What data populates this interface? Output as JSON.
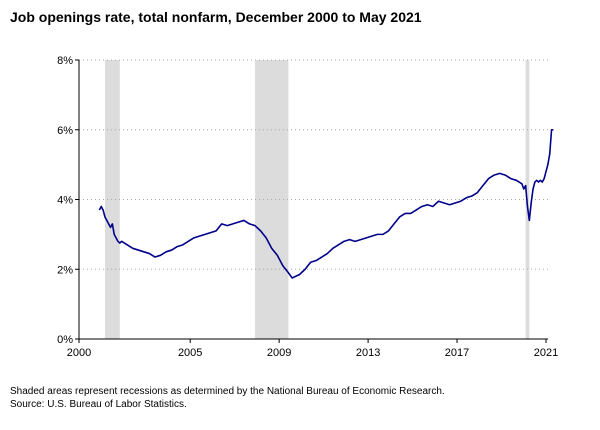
{
  "title": "Job openings rate, total nonfarm, December 2000 to May 2021",
  "footnotes": {
    "recessions": "Shaded areas represent recessions as determined by the National Bureau of Economic Research.",
    "source": "Source: U.S. Bureau of Labor Statistics."
  },
  "chart_data": {
    "type": "line",
    "title": "Job openings rate, total nonfarm, December 2000 to May 2021",
    "xlabel": "",
    "ylabel": "",
    "x_ticks": [
      "2000",
      "2005",
      "2009",
      "2013",
      "2017",
      "2021"
    ],
    "y_ticks": [
      "0%",
      "2%",
      "4%",
      "6%",
      "8%"
    ],
    "xlim": [
      "2000-12",
      "2021-05"
    ],
    "ylim": [
      0,
      8
    ],
    "y_unit": "percent",
    "grid": {
      "horizontal": true,
      "style": "dotted"
    },
    "legend": "none",
    "colors": {
      "line": "#00008b",
      "recession": "#dcdcdc",
      "grid": "#aaaaaa",
      "axis": "#000000"
    },
    "recessions": [
      {
        "start": "2001-03",
        "end": "2001-11"
      },
      {
        "start": "2007-12",
        "end": "2009-06"
      },
      {
        "start": "2020-02",
        "end": "2020-04"
      }
    ],
    "series": [
      {
        "points": [
          [
            "2000-12",
            3.7
          ],
          [
            "2001-01",
            3.8
          ],
          [
            "2001-02",
            3.7
          ],
          [
            "2001-03",
            3.5
          ],
          [
            "2001-04",
            3.4
          ],
          [
            "2001-05",
            3.3
          ],
          [
            "2001-06",
            3.2
          ],
          [
            "2001-07",
            3.3
          ],
          [
            "2001-08",
            3.0
          ],
          [
            "2001-09",
            2.9
          ],
          [
            "2001-10",
            2.8
          ],
          [
            "2001-11",
            2.75
          ],
          [
            "2001-12",
            2.8
          ],
          [
            "2002-03",
            2.7
          ],
          [
            "2002-06",
            2.6
          ],
          [
            "2002-09",
            2.55
          ],
          [
            "2002-12",
            2.5
          ],
          [
            "2003-03",
            2.45
          ],
          [
            "2003-06",
            2.35
          ],
          [
            "2003-09",
            2.4
          ],
          [
            "2003-12",
            2.5
          ],
          [
            "2004-03",
            2.55
          ],
          [
            "2004-06",
            2.65
          ],
          [
            "2004-09",
            2.7
          ],
          [
            "2004-12",
            2.8
          ],
          [
            "2005-03",
            2.9
          ],
          [
            "2005-06",
            2.95
          ],
          [
            "2005-09",
            3.0
          ],
          [
            "2005-12",
            3.05
          ],
          [
            "2006-03",
            3.1
          ],
          [
            "2006-06",
            3.3
          ],
          [
            "2006-09",
            3.25
          ],
          [
            "2006-12",
            3.3
          ],
          [
            "2007-03",
            3.35
          ],
          [
            "2007-06",
            3.4
          ],
          [
            "2007-09",
            3.3
          ],
          [
            "2007-12",
            3.25
          ],
          [
            "2008-03",
            3.1
          ],
          [
            "2008-06",
            2.9
          ],
          [
            "2008-09",
            2.6
          ],
          [
            "2008-12",
            2.4
          ],
          [
            "2009-03",
            2.1
          ],
          [
            "2009-06",
            1.9
          ],
          [
            "2009-08",
            1.75
          ],
          [
            "2009-10",
            1.8
          ],
          [
            "2009-12",
            1.85
          ],
          [
            "2010-03",
            2.0
          ],
          [
            "2010-06",
            2.2
          ],
          [
            "2010-09",
            2.25
          ],
          [
            "2010-12",
            2.35
          ],
          [
            "2011-03",
            2.45
          ],
          [
            "2011-06",
            2.6
          ],
          [
            "2011-09",
            2.7
          ],
          [
            "2011-12",
            2.8
          ],
          [
            "2012-03",
            2.85
          ],
          [
            "2012-06",
            2.8
          ],
          [
            "2012-09",
            2.85
          ],
          [
            "2012-12",
            2.9
          ],
          [
            "2013-03",
            2.95
          ],
          [
            "2013-06",
            3.0
          ],
          [
            "2013-09",
            3.0
          ],
          [
            "2013-12",
            3.1
          ],
          [
            "2014-03",
            3.3
          ],
          [
            "2014-06",
            3.5
          ],
          [
            "2014-09",
            3.6
          ],
          [
            "2014-12",
            3.6
          ],
          [
            "2015-03",
            3.7
          ],
          [
            "2015-06",
            3.8
          ],
          [
            "2015-09",
            3.85
          ],
          [
            "2015-12",
            3.8
          ],
          [
            "2016-03",
            3.95
          ],
          [
            "2016-06",
            3.9
          ],
          [
            "2016-09",
            3.85
          ],
          [
            "2016-12",
            3.9
          ],
          [
            "2017-03",
            3.95
          ],
          [
            "2017-06",
            4.05
          ],
          [
            "2017-09",
            4.1
          ],
          [
            "2017-12",
            4.2
          ],
          [
            "2018-03",
            4.4
          ],
          [
            "2018-06",
            4.6
          ],
          [
            "2018-09",
            4.7
          ],
          [
            "2018-12",
            4.75
          ],
          [
            "2019-03",
            4.7
          ],
          [
            "2019-06",
            4.6
          ],
          [
            "2019-09",
            4.55
          ],
          [
            "2019-12",
            4.45
          ],
          [
            "2020-01",
            4.3
          ],
          [
            "2020-02",
            4.4
          ],
          [
            "2020-03",
            3.8
          ],
          [
            "2020-04",
            3.4
          ],
          [
            "2020-05",
            3.9
          ],
          [
            "2020-06",
            4.3
          ],
          [
            "2020-07",
            4.5
          ],
          [
            "2020-08",
            4.55
          ],
          [
            "2020-09",
            4.5
          ],
          [
            "2020-10",
            4.55
          ],
          [
            "2020-11",
            4.5
          ],
          [
            "2020-12",
            4.6
          ],
          [
            "2021-01",
            4.8
          ],
          [
            "2021-02",
            5.0
          ],
          [
            "2021-03",
            5.3
          ],
          [
            "2021-04",
            6.0
          ],
          [
            "2021-05",
            6.0
          ]
        ]
      }
    ]
  }
}
